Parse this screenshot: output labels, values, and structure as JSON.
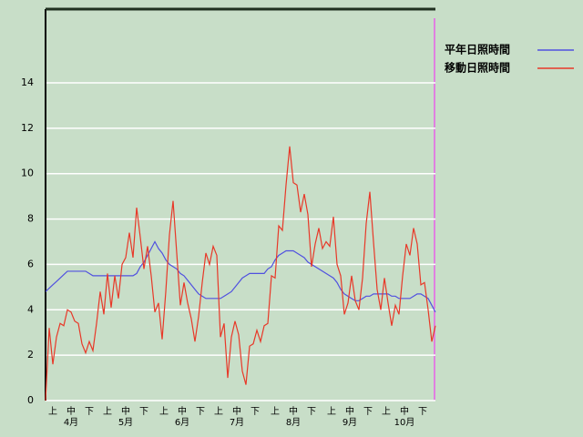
{
  "chart_data": {
    "type": "line",
    "x": [
      0,
      2,
      4,
      6,
      8,
      10,
      12,
      14,
      16,
      18,
      20,
      22,
      24,
      26,
      28,
      30,
      32,
      34,
      36,
      38,
      40,
      42,
      44,
      46,
      48,
      50,
      52,
      54,
      56,
      58,
      60,
      62,
      64,
      66,
      68,
      70,
      72,
      74,
      76,
      78,
      80,
      82,
      84,
      86,
      88,
      90,
      92,
      94,
      96,
      98,
      100,
      102,
      104,
      106,
      108,
      110,
      112,
      114,
      116,
      118,
      120,
      122,
      124,
      126,
      128,
      130,
      132,
      134,
      136,
      138,
      140,
      142,
      144,
      146,
      148,
      150,
      152,
      154,
      156,
      158,
      160,
      162,
      164,
      166,
      168,
      170,
      172,
      174,
      176,
      178,
      180,
      182,
      184,
      186,
      188,
      190,
      192,
      194,
      196,
      198,
      200,
      202,
      204,
      206,
      208,
      210,
      212,
      214
    ],
    "series": [
      {
        "name": "平年日照時間",
        "color": "#5050e0",
        "values": [
          4.8,
          4.95,
          5.1,
          5.25,
          5.4,
          5.55,
          5.7,
          5.7,
          5.7,
          5.7,
          5.7,
          5.7,
          5.6,
          5.5,
          5.5,
          5.5,
          5.5,
          5.5,
          5.5,
          5.5,
          5.5,
          5.5,
          5.5,
          5.5,
          5.5,
          5.6,
          5.9,
          6.1,
          6.4,
          6.7,
          7.0,
          6.7,
          6.5,
          6.2,
          6.0,
          5.9,
          5.8,
          5.6,
          5.5,
          5.3,
          5.1,
          4.9,
          4.7,
          4.6,
          4.5,
          4.5,
          4.5,
          4.5,
          4.5,
          4.6,
          4.7,
          4.8,
          5.0,
          5.2,
          5.4,
          5.5,
          5.6,
          5.6,
          5.6,
          5.6,
          5.6,
          5.8,
          5.9,
          6.2,
          6.4,
          6.5,
          6.6,
          6.6,
          6.6,
          6.5,
          6.4,
          6.3,
          6.1,
          6.0,
          5.9,
          5.8,
          5.7,
          5.6,
          5.5,
          5.4,
          5.2,
          4.9,
          4.7,
          4.6,
          4.5,
          4.4,
          4.4,
          4.5,
          4.6,
          4.6,
          4.7,
          4.7,
          4.7,
          4.7,
          4.7,
          4.6,
          4.6,
          4.5,
          4.5,
          4.5,
          4.5,
          4.6,
          4.7,
          4.7,
          4.6,
          4.5,
          4.2,
          3.9
        ]
      },
      {
        "name": "移動日照時間",
        "color": "#e83828",
        "values": [
          0,
          3.2,
          1.6,
          2.8,
          3.4,
          3.3,
          4.0,
          3.9,
          3.5,
          3.4,
          2.5,
          2.1,
          2.6,
          2.2,
          3.4,
          4.8,
          3.8,
          5.6,
          4.1,
          5.5,
          4.5,
          6.0,
          6.3,
          7.4,
          6.3,
          8.5,
          7.2,
          5.8,
          6.8,
          5.5,
          3.9,
          4.3,
          2.7,
          4.8,
          7.3,
          8.8,
          6.5,
          4.2,
          5.2,
          4.3,
          3.6,
          2.6,
          3.7,
          5.2,
          6.5,
          6.0,
          6.8,
          6.4,
          2.8,
          3.4,
          1.0,
          2.8,
          3.5,
          2.9,
          1.3,
          0.7,
          2.4,
          2.5,
          3.1,
          2.6,
          3.3,
          3.4,
          5.5,
          5.4,
          7.7,
          7.5,
          9.5,
          11.2,
          9.6,
          9.5,
          8.3,
          9.1,
          8.2,
          5.9,
          6.9,
          7.6,
          6.7,
          7.0,
          6.8,
          8.1,
          6.0,
          5.5,
          3.8,
          4.3,
          5.5,
          4.4,
          4.0,
          5.4,
          7.8,
          9.2,
          7.0,
          4.9,
          4.0,
          5.4,
          4.3,
          3.3,
          4.2,
          3.8,
          5.5,
          6.9,
          6.4,
          7.6,
          6.9,
          5.1,
          5.2,
          4.0,
          2.6,
          3.3
        ]
      }
    ],
    "xlim": [
      0,
      214
    ],
    "xticks": [
      {
        "value": 4,
        "label": "上"
      },
      {
        "value": 14,
        "label": "中"
      },
      {
        "value": 24,
        "label": "下"
      },
      {
        "value": 34,
        "label": "上"
      },
      {
        "value": 44,
        "label": "中"
      },
      {
        "value": 54,
        "label": "下"
      },
      {
        "value": 65,
        "label": "上"
      },
      {
        "value": 75,
        "label": "中"
      },
      {
        "value": 85,
        "label": "下"
      },
      {
        "value": 95,
        "label": "上"
      },
      {
        "value": 105,
        "label": "中"
      },
      {
        "value": 115,
        "label": "下"
      },
      {
        "value": 126,
        "label": "上"
      },
      {
        "value": 136,
        "label": "中"
      },
      {
        "value": 146,
        "label": "下"
      },
      {
        "value": 157,
        "label": "上"
      },
      {
        "value": 167,
        "label": "中"
      },
      {
        "value": 177,
        "label": "下"
      },
      {
        "value": 187,
        "label": "上"
      },
      {
        "value": 197,
        "label": "中"
      },
      {
        "value": 207,
        "label": "下"
      }
    ],
    "month_labels": [
      {
        "value": 14,
        "label": "4月"
      },
      {
        "value": 44,
        "label": "5月"
      },
      {
        "value": 75,
        "label": "6月"
      },
      {
        "value": 105,
        "label": "7月"
      },
      {
        "value": 136,
        "label": "8月"
      },
      {
        "value": 167,
        "label": "9月"
      },
      {
        "value": 197,
        "label": "10月"
      }
    ],
    "ylim": [
      0,
      17.25
    ],
    "yticks": [
      0,
      2,
      4,
      6,
      8,
      10,
      12,
      14
    ],
    "grid": true
  }
}
